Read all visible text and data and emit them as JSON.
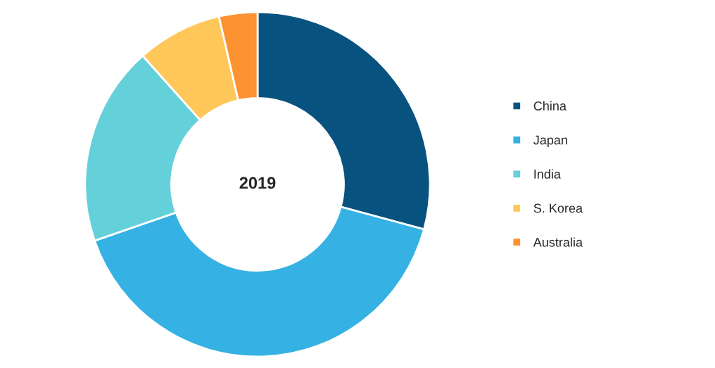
{
  "chart_data": {
    "type": "donut",
    "title": "2019",
    "categories": [
      "China",
      "Japan",
      "India",
      "S. Korea",
      "Australia"
    ],
    "values": [
      29.2,
      40.5,
      18.7,
      8.0,
      3.6
    ],
    "colors": [
      "#08527f",
      "#35b2e3",
      "#64d0da",
      "#ffc65a",
      "#fd9231"
    ],
    "legend": "right"
  }
}
